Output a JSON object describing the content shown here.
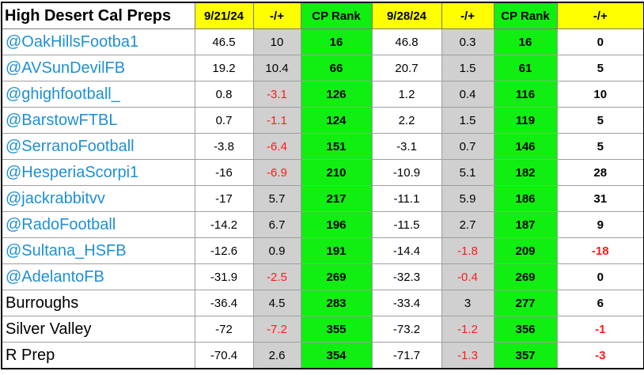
{
  "colors": {
    "header_yellow": "#ffff00",
    "rank_green": "#11ee11",
    "delta_gray": "#d0d0d0",
    "handle_blue": "#1e90d4",
    "negative_red": "#ff1a1a"
  },
  "header": {
    "title": "High Desert Cal Preps",
    "columns": [
      "9/21/24",
      "-/+",
      "CP Rank",
      "9/28/24",
      "-/+",
      "CP Rank",
      "-/+"
    ]
  },
  "rows": [
    {
      "name": "@OakHillsFootba1",
      "handle": true,
      "cells": [
        "46.5",
        "10",
        "16",
        "46.8",
        "0.3",
        "16",
        "0"
      ]
    },
    {
      "name": "@AVSunDevilFB",
      "handle": true,
      "cells": [
        "19.2",
        "10.4",
        "66",
        "20.7",
        "1.5",
        "61",
        "5"
      ]
    },
    {
      "name": "@ghighfootball_",
      "handle": true,
      "cells": [
        "0.8",
        "-3.1",
        "126",
        "1.2",
        "0.4",
        "116",
        "10"
      ]
    },
    {
      "name": "@BarstowFTBL",
      "handle": true,
      "cells": [
        "0.7",
        "-1.1",
        "124",
        "2.2",
        "1.5",
        "119",
        "5"
      ]
    },
    {
      "name": "@SerranoFootball",
      "handle": true,
      "cells": [
        "-3.8",
        "-6.4",
        "151",
        "-3.1",
        "0.7",
        "146",
        "5"
      ]
    },
    {
      "name": "@HesperiaScorpi1",
      "handle": true,
      "cells": [
        "-16",
        "-6.9",
        "210",
        "-10.9",
        "5.1",
        "182",
        "28"
      ]
    },
    {
      "name": "@jackrabbitvv",
      "handle": true,
      "cells": [
        "-17",
        "5.7",
        "217",
        "-11.1",
        "5.9",
        "186",
        "31"
      ]
    },
    {
      "name": "@RadoFootball",
      "handle": true,
      "cells": [
        "-14.2",
        "6.7",
        "196",
        "-11.5",
        "2.7",
        "187",
        "9"
      ]
    },
    {
      "name": "@Sultana_HSFB",
      "handle": true,
      "cells": [
        "-12.6",
        "0.9",
        "191",
        "-14.4",
        "-1.8",
        "209",
        "-18"
      ]
    },
    {
      "name": "@AdelantoFB",
      "handle": true,
      "cells": [
        "-31.9",
        "-2.5",
        "269",
        "-32.3",
        "-0.4",
        "269",
        "0"
      ]
    },
    {
      "name": "Burroughs",
      "handle": false,
      "cells": [
        "-36.4",
        "4.5",
        "283",
        "-33.4",
        "3",
        "277",
        "6"
      ]
    },
    {
      "name": "Silver Valley",
      "handle": false,
      "cells": [
        "-72",
        "-7.2",
        "355",
        "-73.2",
        "-1.2",
        "356",
        "-1"
      ]
    },
    {
      "name": "R Prep",
      "handle": false,
      "cells": [
        "-70.4",
        "2.6",
        "354",
        "-71.7",
        "-1.3",
        "357",
        "-3"
      ]
    }
  ]
}
